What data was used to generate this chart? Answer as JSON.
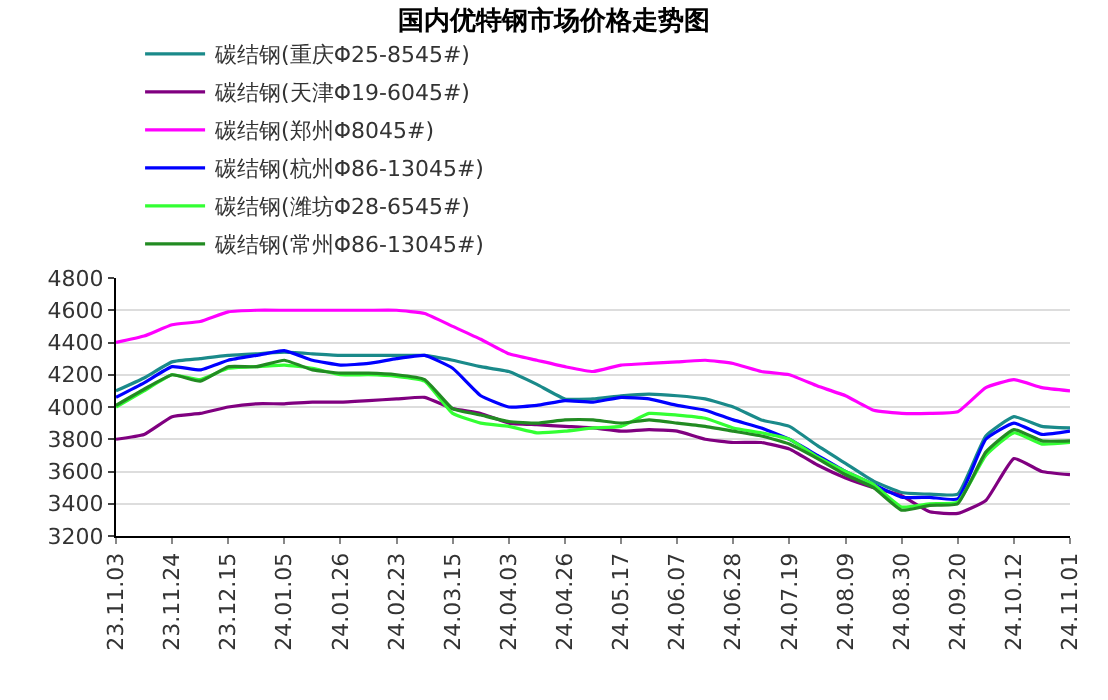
{
  "chart_data": {
    "type": "line",
    "title": "国内优特钢市场价格走势图",
    "categories": [
      "23.11.03",
      null,
      "23.11.24",
      null,
      "23.12.15",
      null,
      "24.01.05",
      null,
      "24.01.26",
      null,
      "24.02.23",
      null,
      "24.03.15",
      null,
      "24.04.03",
      null,
      "24.04.26",
      null,
      "24.05.17",
      null,
      "24.06.07",
      null,
      "24.06.28",
      null,
      "24.07.19",
      null,
      "24.08.09",
      null,
      "24.08.30",
      null,
      "24.09.20",
      null,
      "24.10.12",
      null,
      "24.11.01"
    ],
    "series": [
      {
        "name": "碳结钢(重庆Φ25-8545#)",
        "color": "#1a8a8a",
        "values": [
          4100,
          4180,
          4280,
          4300,
          4320,
          4330,
          4340,
          4330,
          4320,
          4320,
          4320,
          4320,
          4290,
          4250,
          4220,
          4140,
          4050,
          4050,
          4070,
          4080,
          4070,
          4050,
          4000,
          3920,
          3880,
          3760,
          3650,
          3540,
          3470,
          3460,
          3460,
          3820,
          3940,
          3880,
          3870
        ]
      },
      {
        "name": "碳结钢(天津Φ19-6045#)",
        "color": "#800080",
        "values": [
          3800,
          3830,
          3940,
          3960,
          4000,
          4020,
          4020,
          4030,
          4030,
          4040,
          4050,
          4060,
          3990,
          3960,
          3900,
          3890,
          3880,
          3870,
          3850,
          3860,
          3850,
          3800,
          3780,
          3780,
          3740,
          3640,
          3560,
          3500,
          3450,
          3350,
          3340,
          3420,
          3680,
          3600,
          3580
        ]
      },
      {
        "name": "碳结钢(郑州Φ8045#)",
        "color": "#ff00ff",
        "values": [
          4400,
          4440,
          4510,
          4530,
          4590,
          4600,
          4600,
          4600,
          4600,
          4600,
          4600,
          4580,
          4500,
          4420,
          4330,
          4290,
          4250,
          4220,
          4260,
          4270,
          4280,
          4290,
          4270,
          4220,
          4200,
          4130,
          4070,
          3980,
          3960,
          3960,
          3970,
          4120,
          4170,
          4120,
          4100
        ]
      },
      {
        "name": "碳结钢(杭州Φ86-13045#)",
        "color": "#0000ff",
        "values": [
          4060,
          4150,
          4250,
          4230,
          4290,
          4320,
          4350,
          4290,
          4260,
          4270,
          4300,
          4320,
          4240,
          4070,
          4000,
          4010,
          4040,
          4030,
          4060,
          4050,
          4010,
          3980,
          3920,
          3870,
          3800,
          3700,
          3600,
          3520,
          3440,
          3440,
          3430,
          3800,
          3900,
          3830,
          3850
        ]
      },
      {
        "name": "碳结钢(潍坊Φ28-6545#)",
        "color": "#33ff33",
        "values": [
          4000,
          4100,
          4200,
          4170,
          4240,
          4250,
          4260,
          4240,
          4200,
          4200,
          4190,
          4160,
          3960,
          3900,
          3880,
          3840,
          3850,
          3870,
          3880,
          3960,
          3950,
          3930,
          3870,
          3840,
          3800,
          3690,
          3600,
          3520,
          3380,
          3400,
          3410,
          3700,
          3840,
          3770,
          3780
        ]
      },
      {
        "name": "碳结钢(常州Φ86-13045#)",
        "color": "#228b22",
        "values": [
          4010,
          4110,
          4200,
          4160,
          4250,
          4250,
          4290,
          4230,
          4210,
          4210,
          4200,
          4170,
          3990,
          3950,
          3910,
          3900,
          3920,
          3920,
          3900,
          3920,
          3900,
          3880,
          3850,
          3820,
          3770,
          3680,
          3580,
          3500,
          3360,
          3390,
          3400,
          3720,
          3860,
          3790,
          3790
        ]
      }
    ],
    "ylim": [
      3200,
      4800
    ],
    "yticks": [
      3200,
      3400,
      3600,
      3800,
      4000,
      4200,
      4400,
      4600,
      4800
    ],
    "grid": "y",
    "legend": "top",
    "marker": "none",
    "line_style": "solid"
  }
}
